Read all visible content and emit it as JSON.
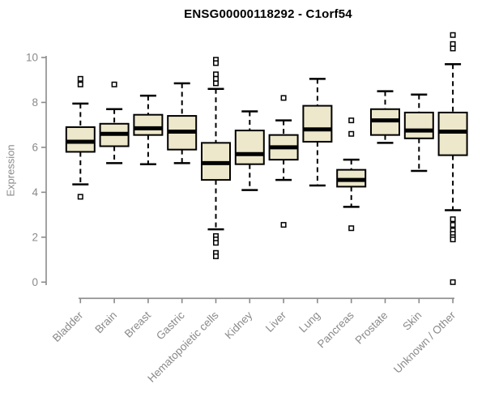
{
  "page": {
    "background": "#ffffff"
  },
  "chart_data": {
    "type": "boxplot",
    "title": "ENSG00000118292 - C1orf54",
    "ylabel": "Expression",
    "xlabel": "",
    "ylim": [
      0,
      10
    ],
    "y_ticks": [
      0,
      2,
      4,
      6,
      8,
      10
    ],
    "grid": false,
    "legend": "none",
    "categories": [
      "Bladder",
      "Brain",
      "Breast",
      "Gastric",
      "Hematopoietic cells",
      "Kidney",
      "Liver",
      "Lung",
      "Pancreas",
      "Prostate",
      "Skin",
      "Unknown / Other"
    ],
    "series": [
      {
        "name": "Bladder",
        "whisker_low": 4.35,
        "q1": 5.8,
        "median": 6.25,
        "q3": 6.9,
        "whisker_high": 7.95,
        "outliers": [
          9.05,
          8.8,
          3.8
        ]
      },
      {
        "name": "Brain",
        "whisker_low": 5.3,
        "q1": 6.05,
        "median": 6.6,
        "q3": 7.05,
        "whisker_high": 7.7,
        "outliers": [
          8.8
        ]
      },
      {
        "name": "Breast",
        "whisker_low": 5.25,
        "q1": 6.55,
        "median": 6.85,
        "q3": 7.45,
        "whisker_high": 8.3,
        "outliers": []
      },
      {
        "name": "Gastric",
        "whisker_low": 5.3,
        "q1": 5.9,
        "median": 6.7,
        "q3": 7.4,
        "whisker_high": 8.85,
        "outliers": []
      },
      {
        "name": "Hematopoietic cells",
        "whisker_low": 2.35,
        "q1": 4.55,
        "median": 5.3,
        "q3": 6.2,
        "whisker_high": 8.6,
        "outliers": [
          9.9,
          9.75,
          9.25,
          9.05,
          8.85,
          2.05,
          1.9,
          1.75,
          1.3,
          1.15
        ]
      },
      {
        "name": "Kidney",
        "whisker_low": 4.1,
        "q1": 5.25,
        "median": 5.7,
        "q3": 6.75,
        "whisker_high": 7.6,
        "outliers": []
      },
      {
        "name": "Liver",
        "whisker_low": 4.55,
        "q1": 5.45,
        "median": 6.0,
        "q3": 6.55,
        "whisker_high": 7.2,
        "outliers": [
          8.2,
          2.55
        ]
      },
      {
        "name": "Lung",
        "whisker_low": 4.3,
        "q1": 6.25,
        "median": 6.8,
        "q3": 7.85,
        "whisker_high": 9.05,
        "outliers": []
      },
      {
        "name": "Pancreas",
        "whisker_low": 3.35,
        "q1": 4.25,
        "median": 4.55,
        "q3": 5.0,
        "whisker_high": 5.45,
        "outliers": [
          7.2,
          6.6,
          2.4
        ]
      },
      {
        "name": "Prostate",
        "whisker_low": 6.2,
        "q1": 6.55,
        "median": 7.2,
        "q3": 7.7,
        "whisker_high": 8.5,
        "outliers": []
      },
      {
        "name": "Skin",
        "whisker_low": 4.95,
        "q1": 6.4,
        "median": 6.75,
        "q3": 7.55,
        "whisker_high": 8.35,
        "outliers": []
      },
      {
        "name": "Unknown / Other",
        "whisker_low": 3.2,
        "q1": 5.65,
        "median": 6.7,
        "q3": 7.55,
        "whisker_high": 9.7,
        "outliers": [
          11.0,
          10.6,
          10.4,
          2.8,
          2.55,
          2.3,
          2.15,
          2.0,
          1.9,
          0.0
        ]
      }
    ],
    "colors": {
      "box_fill": "#ede7cb",
      "box_stroke": "#000000",
      "median": "#000000",
      "whisker": "#000000",
      "outlier_fill": "#ffffff",
      "axis": "#8a8a8a",
      "title_text": "#000000",
      "background": "#ffffff"
    }
  }
}
